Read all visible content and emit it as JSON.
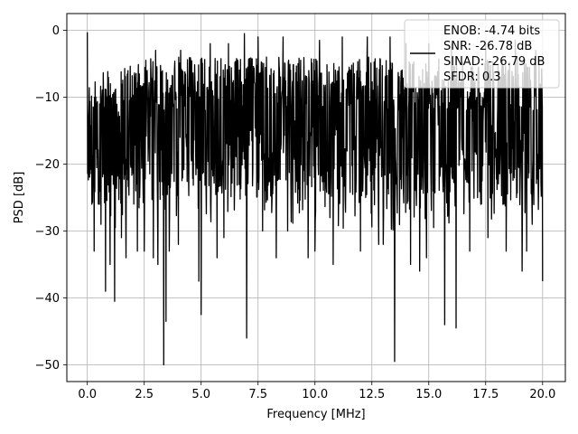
{
  "chart_data": {
    "type": "line",
    "title": "",
    "xlabel": "Frequency [MHz]",
    "ylabel": "PSD [dB]",
    "xlim": [
      -0.9,
      21.0
    ],
    "ylim": [
      -52.5,
      2.5
    ],
    "xticks": [
      0.0,
      2.5,
      5.0,
      7.5,
      10.0,
      12.5,
      15.0,
      17.5,
      20.0
    ],
    "xtick_labels": [
      "0.0",
      "2.5",
      "5.0",
      "7.5",
      "10.0",
      "12.5",
      "15.0",
      "17.5",
      "20.0"
    ],
    "yticks": [
      0,
      -10,
      -20,
      -30,
      -40,
      -50
    ],
    "ytick_labels": [
      "0",
      "−10",
      "−20",
      "−30",
      "−40",
      "−50"
    ],
    "grid": true,
    "legend_position": "top-right",
    "legend": [
      "ENOB: -4.74 bits",
      "SNR: -26.78 dB",
      "SINAD: -26.79 dB",
      "SFDR: 0.3"
    ],
    "line_color": "#000000",
    "series": [
      {
        "x_start": 0.0,
        "x_end": 20.0,
        "noise_floor_db": -14,
        "upper_envelope_db": -3,
        "deep_notches": [
          {
            "x": 0.3,
            "y": -33
          },
          {
            "x": 0.6,
            "y": -29
          },
          {
            "x": 0.8,
            "y": -39
          },
          {
            "x": 1.0,
            "y": -35
          },
          {
            "x": 1.2,
            "y": -40.5
          },
          {
            "x": 1.5,
            "y": -31
          },
          {
            "x": 1.7,
            "y": -34
          },
          {
            "x": 2.2,
            "y": -33
          },
          {
            "x": 2.5,
            "y": -33
          },
          {
            "x": 2.9,
            "y": -34
          },
          {
            "x": 3.1,
            "y": -35
          },
          {
            "x": 3.35,
            "y": -50
          },
          {
            "x": 3.45,
            "y": -43.5
          },
          {
            "x": 3.6,
            "y": -33
          },
          {
            "x": 4.0,
            "y": -32
          },
          {
            "x": 4.9,
            "y": -37.5
          },
          {
            "x": 5.0,
            "y": -42.5
          },
          {
            "x": 5.4,
            "y": -36
          },
          {
            "x": 5.7,
            "y": -34
          },
          {
            "x": 6.0,
            "y": -31
          },
          {
            "x": 7.0,
            "y": -46
          },
          {
            "x": 7.7,
            "y": -30
          },
          {
            "x": 8.3,
            "y": -34
          },
          {
            "x": 8.8,
            "y": -30
          },
          {
            "x": 9.7,
            "y": -34
          },
          {
            "x": 10.0,
            "y": -33
          },
          {
            "x": 10.8,
            "y": -35
          },
          {
            "x": 11.2,
            "y": -32
          },
          {
            "x": 12.0,
            "y": -33
          },
          {
            "x": 12.8,
            "y": -32
          },
          {
            "x": 13.0,
            "y": -32
          },
          {
            "x": 13.5,
            "y": -49.5
          },
          {
            "x": 14.2,
            "y": -35
          },
          {
            "x": 14.6,
            "y": -36
          },
          {
            "x": 14.9,
            "y": -34
          },
          {
            "x": 15.7,
            "y": -44
          },
          {
            "x": 16.2,
            "y": -44.5
          },
          {
            "x": 16.8,
            "y": -33
          },
          {
            "x": 17.6,
            "y": -31
          },
          {
            "x": 18.4,
            "y": -33
          },
          {
            "x": 19.1,
            "y": -36
          },
          {
            "x": 19.3,
            "y": -33
          },
          {
            "x": 20.0,
            "y": -37.5
          }
        ],
        "tall_peaks": [
          {
            "x": 0.0,
            "y": -0.3
          },
          {
            "x": 3.0,
            "y": -3
          },
          {
            "x": 4.1,
            "y": -3
          },
          {
            "x": 5.4,
            "y": -2
          },
          {
            "x": 6.2,
            "y": -2
          },
          {
            "x": 6.9,
            "y": -0.5
          },
          {
            "x": 7.5,
            "y": -1
          },
          {
            "x": 8.6,
            "y": -1
          },
          {
            "x": 10.2,
            "y": -1.5
          },
          {
            "x": 11.2,
            "y": -1
          },
          {
            "x": 12.3,
            "y": -1
          },
          {
            "x": 13.3,
            "y": -1
          },
          {
            "x": 14.0,
            "y": -2
          },
          {
            "x": 15.0,
            "y": -2
          },
          {
            "x": 16.0,
            "y": -2
          },
          {
            "x": 17.5,
            "y": -2
          },
          {
            "x": 18.8,
            "y": -1.5
          },
          {
            "x": 19.7,
            "y": -3
          }
        ]
      }
    ]
  }
}
